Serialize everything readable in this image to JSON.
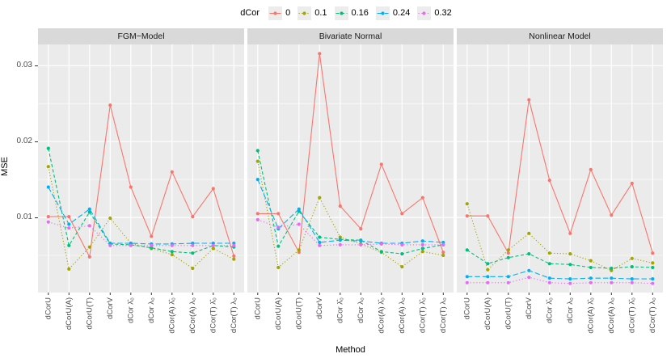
{
  "chart_data": {
    "type": "line",
    "legend_title": "dCor",
    "xlabel": "Method",
    "ylabel": "MSE",
    "ylim": [
      0.0001,
      0.0328
    ],
    "yticks": [
      0.01,
      0.02,
      0.03
    ],
    "ytick_labels": [
      "0.01",
      "0.02",
      "0.03"
    ],
    "yticks_minor": [
      0.005,
      0.015,
      0.025
    ],
    "grid": "on",
    "legend_position": "top-center",
    "categories": [
      "dCorU",
      "dCorU(A)",
      "dCorU(T)",
      "dCorV",
      "dCor λ̂₀",
      "dCor λ₀",
      "dCor(A) λ̂₀",
      "dCor(A) λ₀",
      "dCor(T) λ̂₀",
      "dCor(T) λ₀"
    ],
    "series_meta": [
      {
        "name": "0",
        "color": "#F8766D",
        "dash": "",
        "marker": "circle"
      },
      {
        "name": "0.1",
        "color": "#A3A500",
        "dash": "1.2 2.4",
        "marker": "circle"
      },
      {
        "name": "0.16",
        "color": "#00BF7D",
        "dash": "4 2.6",
        "marker": "circle"
      },
      {
        "name": "0.24",
        "color": "#00B0F6",
        "dash": "6.5 3",
        "marker": "circle"
      },
      {
        "name": "0.32",
        "color": "#E76BF3",
        "dash": "1.2 2.6",
        "marker": "circle"
      }
    ],
    "facets": [
      {
        "title": "FGM−Model",
        "series": [
          {
            "name": "0",
            "values": [
              0.0101,
              0.0101,
              0.0048,
              0.0248,
              0.014,
              0.0075,
              0.016,
              0.0101,
              0.0138,
              0.0049
            ]
          },
          {
            "name": "0.1",
            "values": [
              0.0167,
              0.0032,
              0.0061,
              0.0099,
              0.0066,
              0.0059,
              0.0051,
              0.0033,
              0.0059,
              0.0045
            ]
          },
          {
            "name": "0.16",
            "values": [
              0.0191,
              0.0063,
              0.0107,
              0.0065,
              0.0064,
              0.006,
              0.0055,
              0.0053,
              0.0063,
              0.0061
            ]
          },
          {
            "name": "0.24",
            "values": [
              0.014,
              0.0091,
              0.0111,
              0.0066,
              0.0066,
              0.0065,
              0.0065,
              0.0066,
              0.0066,
              0.0066
            ]
          },
          {
            "name": "0.32",
            "values": [
              0.0094,
              0.0086,
              0.0089,
              0.0063,
              0.0063,
              0.0063,
              0.0063,
              0.0063,
              0.0063,
              0.0063
            ]
          }
        ]
      },
      {
        "title": "Bivariate Normal",
        "series": [
          {
            "name": "0",
            "values": [
              0.0105,
              0.0105,
              0.0054,
              0.0316,
              0.0115,
              0.0085,
              0.017,
              0.0105,
              0.0126,
              0.0054
            ]
          },
          {
            "name": "0.1",
            "values": [
              0.0174,
              0.0034,
              0.0057,
              0.0126,
              0.0074,
              0.0065,
              0.0054,
              0.0035,
              0.0055,
              0.005
            ]
          },
          {
            "name": "0.16",
            "values": [
              0.0188,
              0.0062,
              0.0108,
              0.0074,
              0.0071,
              0.007,
              0.0055,
              0.0052,
              0.0059,
              0.0064
            ]
          },
          {
            "name": "0.24",
            "values": [
              0.015,
              0.0085,
              0.0111,
              0.0067,
              0.007,
              0.0069,
              0.0066,
              0.0066,
              0.0069,
              0.0067
            ]
          },
          {
            "name": "0.32",
            "values": [
              0.0097,
              0.0087,
              0.0091,
              0.0063,
              0.0064,
              0.0064,
              0.0065,
              0.0064,
              0.0064,
              0.0064
            ]
          }
        ]
      },
      {
        "title": "Nonlinear Model",
        "series": [
          {
            "name": "0",
            "values": [
              0.0102,
              0.0102,
              0.0053,
              0.0255,
              0.0149,
              0.0079,
              0.0163,
              0.0103,
              0.0145,
              0.0053
            ]
          },
          {
            "name": "0.1",
            "values": [
              0.0118,
              0.0031,
              0.0057,
              0.0079,
              0.0053,
              0.0052,
              0.0043,
              0.003,
              0.0046,
              0.004
            ]
          },
          {
            "name": "0.16",
            "values": [
              0.0057,
              0.0039,
              0.0047,
              0.0052,
              0.0039,
              0.0038,
              0.0034,
              0.0033,
              0.0035,
              0.0034
            ]
          },
          {
            "name": "0.24",
            "values": [
              0.0022,
              0.0022,
              0.0022,
              0.003,
              0.002,
              0.0019,
              0.002,
              0.002,
              0.0019,
              0.0019
            ]
          },
          {
            "name": "0.32",
            "values": [
              0.0014,
              0.0014,
              0.0014,
              0.0021,
              0.0014,
              0.0013,
              0.0014,
              0.0014,
              0.0014,
              0.0013
            ]
          }
        ]
      }
    ],
    "colors": {
      "panel_bg": "#EBEBEB",
      "strip_bg": "#D9D9D9",
      "grid": "#FFFFFF",
      "tick_text": "#4d4d4d",
      "tick_mark": "#333333"
    }
  }
}
